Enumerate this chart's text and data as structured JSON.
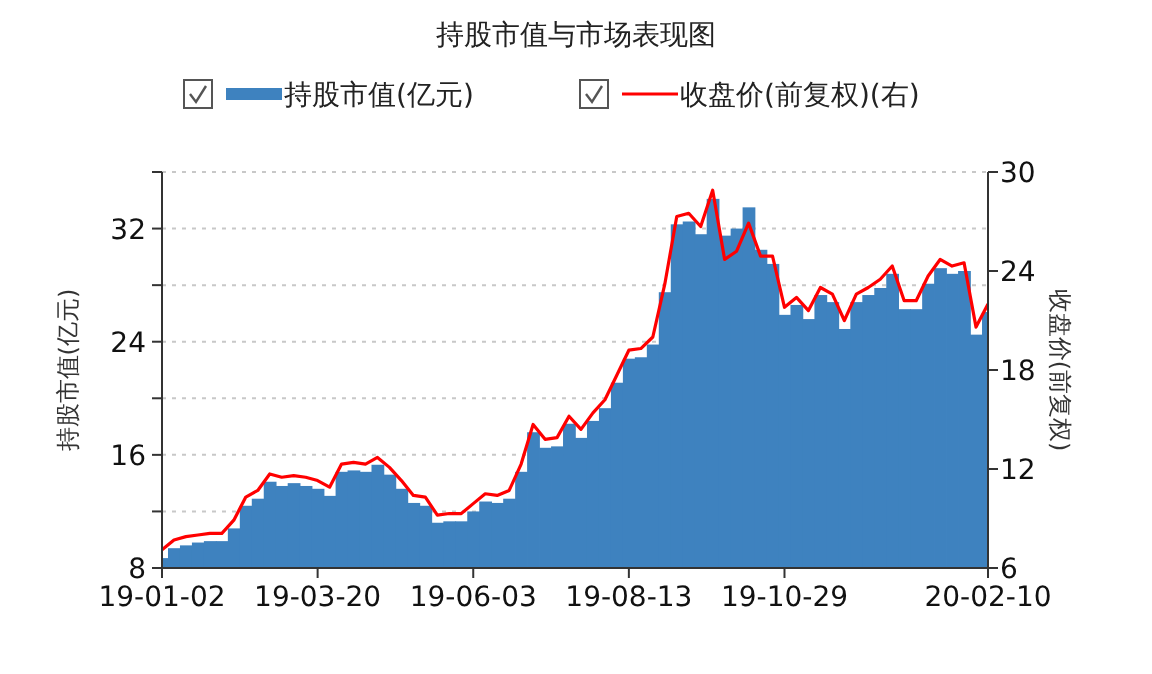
{
  "chart_data": {
    "type": "bar",
    "title": "持股市值与市场表现图",
    "ylabel": "持股市值(亿元)",
    "y2label": "收盘价(前复权)",
    "categories": [
      "19-01-02",
      null,
      null,
      null,
      null,
      null,
      null,
      null,
      null,
      null,
      null,
      null,
      null,
      "19-03-20",
      null,
      null,
      null,
      null,
      null,
      null,
      null,
      null,
      null,
      null,
      null,
      null,
      "19-06-03",
      null,
      null,
      null,
      null,
      null,
      null,
      null,
      null,
      null,
      null,
      null,
      null,
      "19-08-13",
      null,
      null,
      null,
      null,
      null,
      null,
      null,
      null,
      null,
      null,
      null,
      null,
      "19-10-29",
      null,
      null,
      null,
      null,
      null,
      null,
      null,
      null,
      null,
      null,
      null,
      null,
      null,
      null,
      null,
      null,
      "20-02-10"
    ],
    "series": [
      {
        "name": "持股市值(亿元)",
        "color": "#3e82bf",
        "values": [
          8.7,
          9.4,
          9.6,
          9.8,
          9.9,
          9.9,
          10.8,
          12.4,
          12.9,
          14.1,
          13.8,
          14.0,
          13.8,
          13.6,
          13.1,
          14.8,
          14.9,
          14.8,
          15.3,
          14.6,
          13.6,
          12.6,
          12.4,
          11.2,
          11.3,
          11.3,
          12.0,
          12.7,
          12.6,
          12.9,
          14.8,
          17.6,
          16.5,
          16.6,
          18.2,
          17.2,
          18.4,
          19.3,
          21.1,
          22.8,
          22.9,
          23.8,
          27.5,
          32.3,
          32.5,
          31.6,
          34.1,
          31.5,
          32.0,
          33.5,
          30.5,
          29.5,
          25.9,
          26.6,
          25.6,
          27.3,
          26.8,
          24.9,
          26.8,
          27.3,
          27.8,
          28.8,
          26.3,
          26.3,
          28.1,
          29.2,
          28.8,
          29.0,
          24.5,
          26.1
        ]
      },
      {
        "name": "收盘价(前复权)(右)",
        "type": "line",
        "axis": "y2",
        "color": "#ff0000",
        "values": [
          7.1,
          7.7,
          7.9,
          8.0,
          8.1,
          8.1,
          8.9,
          10.3,
          10.7,
          11.7,
          11.5,
          11.6,
          11.5,
          11.3,
          10.9,
          12.3,
          12.4,
          12.3,
          12.7,
          12.1,
          11.3,
          10.4,
          10.3,
          9.2,
          9.3,
          9.3,
          9.9,
          10.5,
          10.4,
          10.7,
          12.3,
          14.7,
          13.8,
          13.9,
          15.2,
          14.4,
          15.4,
          16.2,
          17.7,
          19.2,
          19.3,
          20.0,
          23.2,
          27.3,
          27.5,
          26.7,
          28.9,
          24.7,
          25.2,
          26.9,
          24.9,
          24.9,
          21.8,
          22.4,
          21.6,
          23.0,
          22.6,
          21.0,
          22.6,
          23.0,
          23.5,
          24.3,
          22.2,
          22.2,
          23.7,
          24.7,
          24.3,
          24.5,
          20.6,
          22.0
        ]
      }
    ],
    "ylim": [
      8,
      36
    ],
    "yticks": [
      8,
      {
        "value": 12,
        "label": null
      },
      16,
      {
        "value": 20,
        "label": null
      },
      24,
      {
        "value": 28,
        "label": null
      },
      32,
      {
        "value": 36,
        "label": null
      }
    ],
    "y2lim": [
      6,
      30
    ],
    "y2ticks": [
      6,
      12,
      18,
      24,
      30
    ],
    "grid": "y",
    "legend": "top"
  }
}
